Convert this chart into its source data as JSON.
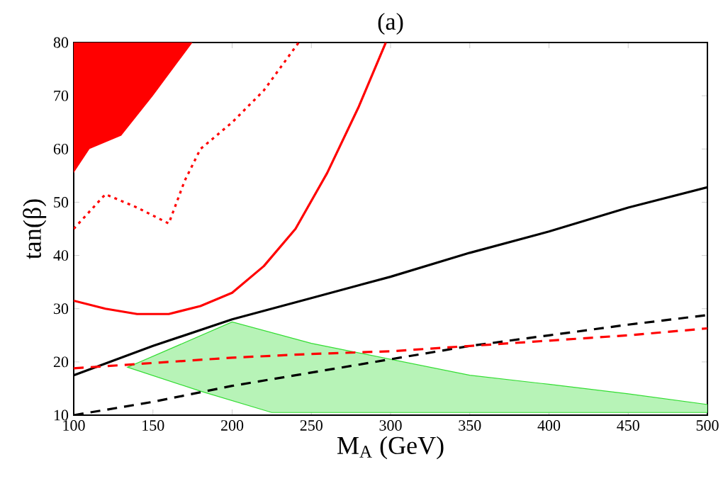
{
  "chart_data": {
    "type": "line",
    "title": "(a)",
    "xlabel": "M$_{A}$ (GeV)",
    "ylabel": "tan(β)",
    "xlim": [
      100,
      500
    ],
    "ylim": [
      10,
      80
    ],
    "xticks": [
      100,
      150,
      200,
      250,
      300,
      350,
      400,
      450,
      500
    ],
    "yticks": [
      10,
      20,
      30,
      40,
      50,
      60,
      70,
      80
    ],
    "grid": false,
    "series": [
      {
        "type": "area",
        "color": "#ff0000",
        "x": [
          100,
          110,
          130,
          150,
          165,
          175,
          100
        ],
        "values": [
          55.5,
          60,
          62.5,
          70,
          76,
          80,
          80
        ]
      },
      {
        "type": "area",
        "color": "#33dd33",
        "line_style": "solid",
        "x": [
          134,
          200,
          250,
          300,
          350,
          400,
          450,
          500,
          500,
          225,
          180
        ],
        "values": [
          19,
          27.5,
          23.5,
          20.5,
          17.5,
          15.8,
          14,
          12,
          10.5,
          10.5,
          14.5
        ]
      },
      {
        "color": "#ff0000",
        "line_style": "dotted",
        "x": [
          100,
          120,
          140,
          160,
          170,
          180,
          200,
          220,
          242
        ],
        "values": [
          45,
          51.5,
          49,
          46,
          54,
          60,
          65,
          71,
          80
        ]
      },
      {
        "color": "#ff0000",
        "line_style": "solid",
        "x": [
          100,
          120,
          140,
          160,
          180,
          200,
          220,
          240,
          260,
          280,
          297
        ],
        "values": [
          31.5,
          30,
          29,
          29,
          30.5,
          33,
          38,
          45,
          55.5,
          68,
          80
        ]
      },
      {
        "color": "#000000",
        "line_style": "solid",
        "x": [
          100,
          150,
          200,
          250,
          300,
          350,
          400,
          450,
          500
        ],
        "values": [
          17.5,
          23,
          28,
          32,
          36,
          40.5,
          44.5,
          49,
          52.8
        ]
      },
      {
        "color": "#000000",
        "line_style": "dashed",
        "x": [
          100,
          150,
          200,
          250,
          300,
          350,
          400,
          450,
          500
        ],
        "values": [
          10,
          12.5,
          15.5,
          18,
          20.5,
          23,
          25,
          27,
          28.8
        ]
      },
      {
        "color": "#ff0000",
        "line_style": "dashed",
        "x": [
          100,
          150,
          200,
          250,
          300,
          350,
          400,
          450,
          500
        ],
        "values": [
          18.8,
          19.8,
          20.8,
          21.5,
          22,
          23,
          24,
          25,
          26.3
        ]
      }
    ]
  }
}
